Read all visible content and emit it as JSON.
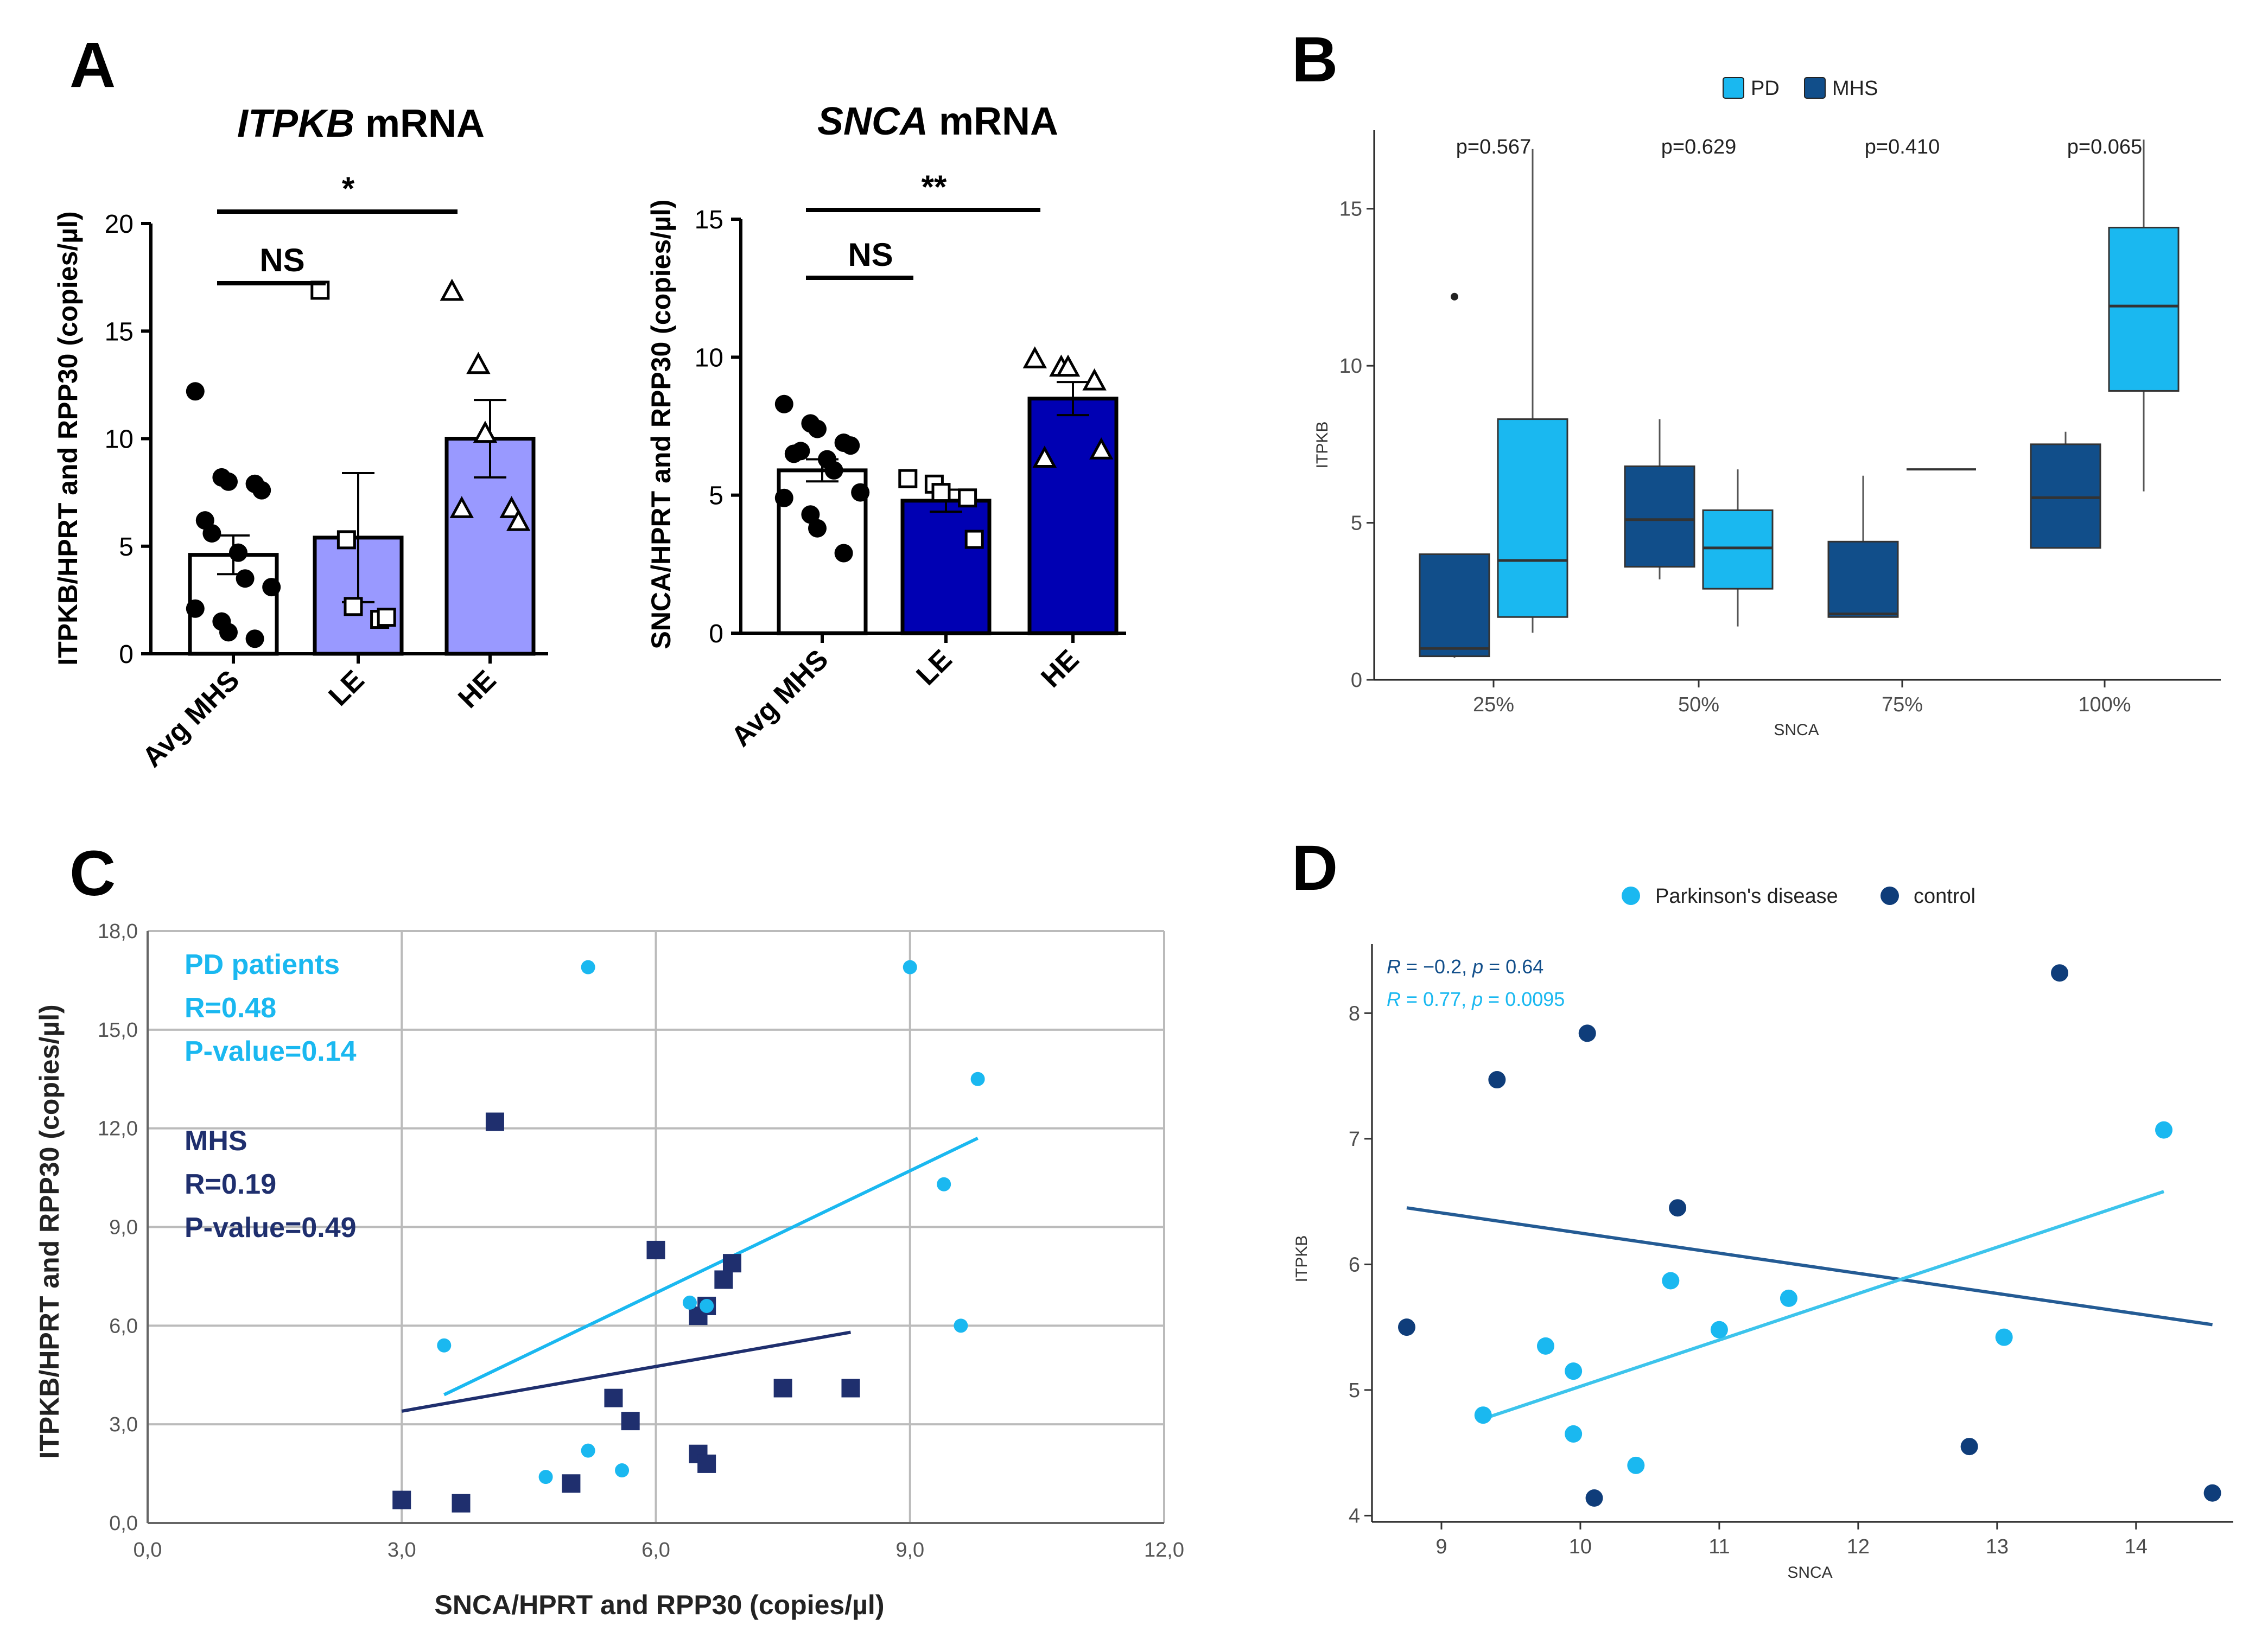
{
  "panels": {
    "a": "A",
    "b": "B",
    "c": "C",
    "d": "D"
  },
  "colors": {
    "light_bar": "#9999ff",
    "dark_bar": "#0000b3",
    "pd": "#1ab8f0",
    "mhs_box": "#114e8a",
    "mhs_c": "#1f2f6e",
    "control_d": "#0f3d7a",
    "pd_line_d": "#3cc4ec",
    "grid": "#bbbbbb"
  },
  "chart_data": [
    {
      "id": "A1",
      "type": "bar",
      "title_gene": "ITPKB",
      "title_rest": " mRNA",
      "ylabel": "ITPKB/HPRT and RPP30 (copies/µl)",
      "categories": [
        "Avg MHS",
        "LE",
        "HE"
      ],
      "values": [
        4.6,
        5.4,
        10.0
      ],
      "sem": [
        0.9,
        3.0,
        1.8
      ],
      "ylim": [
        0,
        20
      ],
      "yticks": [
        "0",
        "5",
        "10",
        "15",
        "20"
      ],
      "points": [
        [
          12.2,
          8.2,
          8.0,
          7.9,
          7.6,
          6.2,
          5.6,
          4.7,
          3.5,
          3.1,
          2.1,
          1.5,
          1.0,
          0.7
        ],
        [
          16.9,
          5.3,
          2.2,
          1.6,
          1.7
        ],
        [
          16.8,
          13.4,
          10.2,
          6.7,
          6.1,
          6.7
        ]
      ],
      "markers": [
        "circle",
        "square",
        "triangle"
      ],
      "significance": [
        {
          "label": "*",
          "from": 0,
          "to": 2
        },
        {
          "label": "NS",
          "from": 0,
          "to": 1
        }
      ]
    },
    {
      "id": "A2",
      "type": "bar",
      "title_gene": "SNCA",
      "title_rest": " mRNA",
      "ylabel": "SNCA/HPRT and RPP30 (copies/µl)",
      "categories": [
        "Avg MHS",
        "LE",
        "HE"
      ],
      "values": [
        5.9,
        4.8,
        8.5
      ],
      "sem": [
        0.4,
        0.4,
        0.6
      ],
      "ylim": [
        0,
        15
      ],
      "yticks": [
        "0",
        "5",
        "10",
        "15"
      ],
      "points": [
        [
          8.3,
          7.6,
          7.4,
          6.9,
          6.8,
          6.5,
          6.6,
          6.3,
          5.9,
          5.1,
          4.9,
          4.3,
          3.8,
          2.9
        ],
        [
          5.6,
          5.4,
          5.1,
          4.9,
          3.4
        ],
        [
          9.9,
          9.6,
          9.6,
          9.1,
          6.6,
          6.3
        ]
      ],
      "markers": [
        "circle",
        "square",
        "triangle"
      ],
      "significance": [
        {
          "label": "**",
          "from": 0,
          "to": 2
        },
        {
          "label": "NS",
          "from": 0,
          "to": 1
        }
      ]
    },
    {
      "id": "B",
      "type": "box",
      "xlabel": "SNCA",
      "ylabel": "ITPKB",
      "categories": [
        "25%",
        "50%",
        "75%",
        "100%"
      ],
      "ylim": [
        0,
        17.5
      ],
      "yticks": [
        0,
        5,
        10,
        15
      ],
      "legend": [
        "PD",
        "MHS"
      ],
      "pvalues": [
        "p=0.567",
        "p=0.629",
        "p=0.410",
        "p=0.065"
      ],
      "boxes": {
        "MHS": [
          {
            "min": 0.7,
            "q1": 0.75,
            "med": 1.0,
            "q3": 4.0,
            "max": 4.0,
            "outliers": [
              12.2
            ]
          },
          {
            "min": 3.2,
            "q1": 3.6,
            "med": 5.1,
            "q3": 6.8,
            "max": 8.3,
            "outliers": []
          },
          {
            "min": 2.0,
            "q1": 2.0,
            "med": 2.1,
            "q3": 4.4,
            "max": 6.5,
            "outliers": []
          },
          {
            "min": 4.2,
            "q1": 4.2,
            "med": 5.8,
            "q3": 7.5,
            "max": 7.9,
            "outliers": []
          }
        ],
        "PD": [
          {
            "min": 1.5,
            "q1": 2.0,
            "med": 3.8,
            "q3": 8.3,
            "max": 16.9,
            "outliers": []
          },
          {
            "min": 1.7,
            "q1": 2.9,
            "med": 4.2,
            "q3": 5.4,
            "max": 6.7,
            "outliers": []
          },
          {
            "min": 6.7,
            "q1": 6.7,
            "med": 6.7,
            "q3": 6.7,
            "max": 6.7,
            "outliers": []
          },
          {
            "min": 6.0,
            "q1": 9.2,
            "med": 11.9,
            "q3": 14.4,
            "max": 17.2,
            "outliers": []
          }
        ]
      }
    },
    {
      "id": "C",
      "type": "scatter",
      "xlabel": "SNCA/HPRT and RPP30 (copies/µl)",
      "ylabel": "ITPKB/HPRT and RPP30 (copies/µl)",
      "xlim": [
        0,
        12
      ],
      "ylim": [
        0,
        18
      ],
      "xticks": [
        "0,0",
        "3,0",
        "6,0",
        "9,0",
        "12,0"
      ],
      "yticks": [
        "0,0",
        "3,0",
        "6,0",
        "9,0",
        "12,0",
        "15,0",
        "18,0"
      ],
      "series": [
        {
          "name": "PD patients",
          "marker": "circle",
          "x": [
            5.2,
            9.0,
            9.8,
            9.4,
            9.6,
            3.5,
            6.4,
            6.6,
            5.2,
            4.7,
            5.6
          ],
          "y": [
            16.9,
            16.9,
            13.5,
            10.3,
            6.0,
            5.4,
            6.7,
            6.6,
            2.2,
            1.4,
            1.6
          ],
          "fit": [
            [
              3.5,
              3.9
            ],
            [
              9.8,
              11.7
            ]
          ]
        },
        {
          "name": "MHS",
          "marker": "square",
          "x": [
            4.1,
            6.0,
            6.9,
            6.8,
            6.6,
            6.5,
            5.5,
            5.7,
            7.5,
            8.3,
            6.5,
            6.6,
            5.0,
            3.0,
            3.7
          ],
          "y": [
            12.2,
            8.3,
            7.9,
            7.4,
            6.6,
            6.3,
            3.8,
            3.1,
            4.1,
            4.1,
            2.1,
            1.8,
            1.2,
            0.7,
            0.6
          ],
          "fit": [
            [
              3.0,
              3.4
            ],
            [
              8.3,
              5.8
            ]
          ]
        }
      ],
      "annotations": {
        "pd": [
          "PD patients",
          "R=0.48",
          "P-value=0.14"
        ],
        "mhs": [
          "MHS",
          "R=0.19",
          "P-value=0.49"
        ]
      }
    },
    {
      "id": "D",
      "type": "scatter",
      "xlabel": "SNCA",
      "ylabel": "ITPKB",
      "xlim": [
        8.5,
        14.7
      ],
      "ylim": [
        3.95,
        8.55
      ],
      "xticks": [
        9,
        10,
        11,
        12,
        13,
        14
      ],
      "yticks": [
        4,
        5,
        6,
        7,
        8
      ],
      "legend": [
        "Parkinson's disease",
        "control"
      ],
      "series": [
        {
          "name": "Parkinson's disease",
          "x": [
            9.3,
            9.75,
            9.95,
            9.95,
            10.4,
            10.65,
            11.0,
            11.5,
            13.05,
            14.2
          ],
          "y": [
            4.8,
            5.35,
            5.15,
            4.65,
            4.4,
            5.87,
            5.48,
            5.73,
            5.42,
            7.07
          ],
          "fit": [
            [
              9.3,
              4.77
            ],
            [
              14.2,
              6.58
            ]
          ]
        },
        {
          "name": "control",
          "x": [
            8.75,
            9.4,
            10.05,
            10.1,
            10.7,
            12.8,
            13.45,
            14.55
          ],
          "y": [
            5.5,
            7.47,
            7.84,
            4.14,
            6.45,
            4.55,
            8.32,
            4.18
          ],
          "fit": [
            [
              8.75,
              6.45
            ],
            [
              14.55,
              5.52
            ]
          ]
        }
      ],
      "stats": {
        "control": {
          "R": "R",
          "r_value": " = −0.2, ",
          "P": "p",
          "p_value": " = 0.64"
        },
        "pd": {
          "R": "R",
          "r_value": " = 0.77, ",
          "P": "p",
          "p_value": " = 0.0095"
        }
      }
    }
  ]
}
